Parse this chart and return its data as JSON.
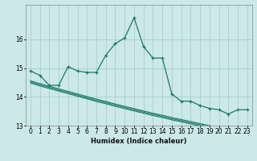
{
  "xlabel": "Humidex (Indice chaleur)",
  "ylabel": "",
  "bg_color": "#cce8e8",
  "grid_color": "#aacfcf",
  "line_color": "#1a7a6a",
  "x_values": [
    0,
    1,
    2,
    3,
    4,
    5,
    6,
    7,
    8,
    9,
    10,
    11,
    12,
    13,
    14,
    15,
    16,
    17,
    18,
    19,
    20,
    21,
    22,
    23
  ],
  "main_line": [
    14.9,
    14.75,
    14.4,
    14.4,
    15.05,
    14.9,
    14.85,
    14.85,
    15.45,
    15.85,
    16.05,
    16.75,
    15.75,
    15.35,
    15.35,
    14.1,
    13.85,
    13.85,
    13.7,
    13.6,
    13.55,
    13.4,
    13.55,
    13.55
  ],
  "line2": [
    14.48,
    14.38,
    14.29,
    14.2,
    14.11,
    14.02,
    13.93,
    13.84,
    13.76,
    13.67,
    13.59,
    13.51,
    13.43,
    13.35,
    13.28,
    13.2,
    13.13,
    13.06,
    12.99,
    12.92,
    12.86,
    12.8,
    12.74,
    12.68
  ],
  "line3": [
    14.52,
    14.42,
    14.33,
    14.24,
    14.15,
    14.06,
    13.97,
    13.88,
    13.8,
    13.71,
    13.63,
    13.55,
    13.47,
    13.39,
    13.32,
    13.24,
    13.17,
    13.1,
    13.03,
    12.96,
    12.9,
    12.84,
    12.78,
    12.72
  ],
  "line4": [
    14.56,
    14.46,
    14.37,
    14.28,
    14.19,
    14.1,
    14.01,
    13.92,
    13.84,
    13.75,
    13.67,
    13.59,
    13.51,
    13.43,
    13.36,
    13.28,
    13.21,
    13.14,
    13.07,
    13.0,
    12.94,
    12.88,
    12.82,
    12.76
  ],
  "ylim": [
    13.0,
    17.2
  ],
  "xlim": [
    -0.5,
    23.5
  ],
  "yticks": [
    13,
    14,
    15,
    16
  ],
  "xtick_labels": [
    "0",
    "1",
    "2",
    "3",
    "4",
    "5",
    "6",
    "7",
    "8",
    "9",
    "10",
    "11",
    "12",
    "13",
    "14",
    "15",
    "16",
    "17",
    "18",
    "19",
    "20",
    "21",
    "22",
    "23"
  ]
}
